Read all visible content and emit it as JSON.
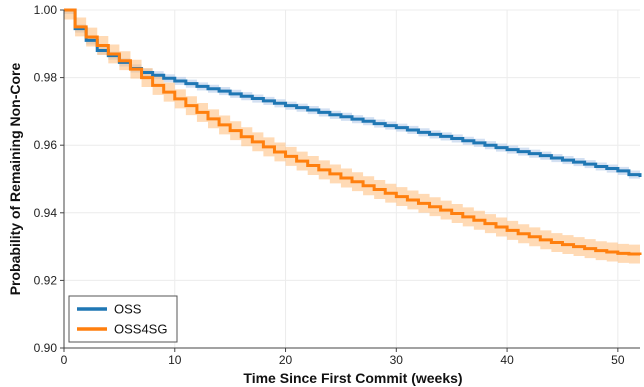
{
  "chart_data": {
    "type": "line",
    "title": "",
    "xlabel": "Time Since First Commit (weeks)",
    "ylabel": "Probability of Remaining Non-Core",
    "xlim": [
      0,
      52
    ],
    "ylim": [
      0.9,
      1.0
    ],
    "xticks": [
      0,
      10,
      20,
      30,
      40,
      50
    ],
    "xtick_labels": [
      "0",
      "10",
      "20",
      "30",
      "40",
      "50"
    ],
    "yticks": [
      0.9,
      0.92,
      0.94,
      0.96,
      0.98,
      1.0
    ],
    "ytick_labels": [
      "0.90",
      "0.92",
      "0.94",
      "0.96",
      "0.98",
      "1.00"
    ],
    "grid": true,
    "legend_position": "bottom-left",
    "step": true,
    "series": [
      {
        "name": "OSS",
        "color": "#1f77b4",
        "band_color": "#aec7e8",
        "x": [
          0,
          1,
          2,
          3,
          4,
          5,
          6,
          7,
          8,
          9,
          10,
          11,
          12,
          13,
          14,
          15,
          16,
          17,
          18,
          19,
          20,
          21,
          22,
          23,
          24,
          25,
          26,
          27,
          28,
          29,
          30,
          31,
          32,
          33,
          34,
          35,
          36,
          37,
          38,
          39,
          40,
          41,
          42,
          43,
          44,
          45,
          46,
          47,
          48,
          49,
          50,
          51,
          52
        ],
        "y": [
          1.0,
          0.9945,
          0.991,
          0.988,
          0.9865,
          0.9845,
          0.9827,
          0.9815,
          0.9807,
          0.9798,
          0.979,
          0.9782,
          0.9774,
          0.9767,
          0.976,
          0.9752,
          0.9745,
          0.9738,
          0.9731,
          0.9724,
          0.9717,
          0.9711,
          0.9704,
          0.9697,
          0.969,
          0.9684,
          0.9677,
          0.9671,
          0.9664,
          0.9658,
          0.9652,
          0.9645,
          0.9638,
          0.9632,
          0.9626,
          0.962,
          0.9613,
          0.9607,
          0.96,
          0.9593,
          0.9587,
          0.9581,
          0.9575,
          0.9569,
          0.9562,
          0.9556,
          0.955,
          0.9544,
          0.9537,
          0.9531,
          0.9524,
          0.9513,
          0.9506
        ],
        "ci_halfwidth": 0.0012
      },
      {
        "name": "OSS4SG",
        "color": "#ff7f0e",
        "band_color": "#ffbb78",
        "x": [
          0,
          1,
          2,
          3,
          4,
          5,
          6,
          7,
          8,
          9,
          10,
          11,
          12,
          13,
          14,
          15,
          16,
          17,
          18,
          19,
          20,
          21,
          22,
          23,
          24,
          25,
          26,
          27,
          28,
          29,
          30,
          31,
          32,
          33,
          34,
          35,
          36,
          37,
          38,
          39,
          40,
          41,
          42,
          43,
          44,
          45,
          46,
          47,
          48,
          49,
          50,
          51,
          52
        ],
        "y": [
          1.0,
          0.995,
          0.992,
          0.9895,
          0.987,
          0.985,
          0.9825,
          0.98,
          0.9777,
          0.9757,
          0.9737,
          0.9717,
          0.9697,
          0.9678,
          0.966,
          0.9643,
          0.9625,
          0.961,
          0.9595,
          0.958,
          0.9567,
          0.9553,
          0.954,
          0.9527,
          0.9515,
          0.9503,
          0.9492,
          0.948,
          0.9469,
          0.9458,
          0.9448,
          0.9438,
          0.9428,
          0.9418,
          0.9408,
          0.9398,
          0.9388,
          0.9378,
          0.9368,
          0.9358,
          0.9348,
          0.9338,
          0.9329,
          0.932,
          0.9312,
          0.9306,
          0.93,
          0.9294,
          0.9288,
          0.9284,
          0.928,
          0.9278,
          0.9275
        ],
        "ci_halfwidth": 0.0028
      }
    ]
  }
}
